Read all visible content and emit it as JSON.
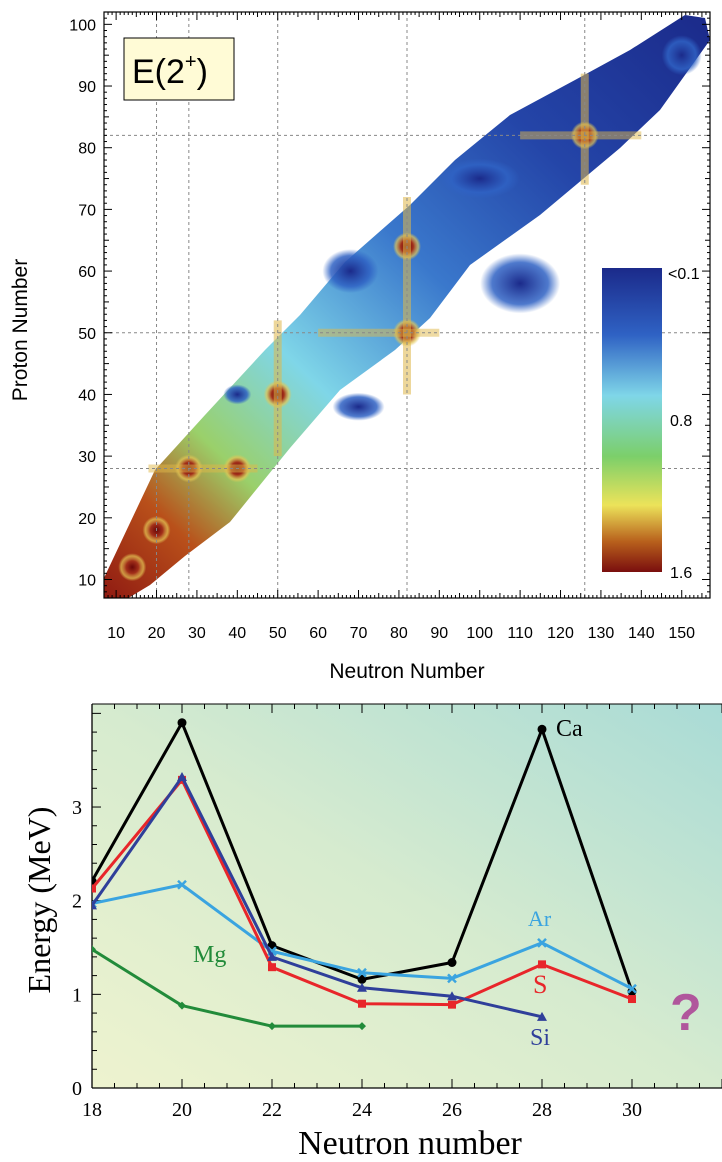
{
  "chart_data": [
    {
      "type": "heatmap",
      "title": "E(2⁺)",
      "title_base": "E(2",
      "title_sup": "+",
      "title_close": ")",
      "xlabel": "Neutron Number",
      "ylabel": "Proton Number",
      "xlim": [
        7,
        157
      ],
      "ylim": [
        7,
        102
      ],
      "x_ticks": [
        10,
        20,
        30,
        40,
        50,
        60,
        70,
        80,
        90,
        100,
        110,
        120,
        130,
        140,
        150
      ],
      "y_ticks": [
        10,
        20,
        30,
        40,
        50,
        60,
        70,
        80,
        90,
        100
      ],
      "magic_numbers_N": [
        20,
        28,
        50,
        82,
        126
      ],
      "magic_numbers_Z": [
        28,
        50,
        82
      ],
      "colorbar": {
        "labels": [
          "<0.1",
          "0.8",
          "1.6"
        ],
        "colors": [
          "#1b2a8a",
          "#2f62c4",
          "#7fd6e8",
          "#7ccf6a",
          "#ece35a",
          "#b8601c",
          "#7a0e0e"
        ]
      },
      "grid": true
    },
    {
      "type": "line",
      "xlabel": "Neutron number",
      "ylabel": "Energy (MeV)",
      "xlim": [
        18,
        32
      ],
      "ylim": [
        0,
        4.1
      ],
      "x_ticks": [
        18,
        20,
        22,
        24,
        26,
        28,
        30
      ],
      "y_ticks": [
        0,
        1,
        2,
        3
      ],
      "series": [
        {
          "name": "Ca",
          "color": "#000000",
          "marker": "circle",
          "x": [
            18,
            20,
            22,
            24,
            26,
            28,
            30
          ],
          "values": [
            2.21,
            3.9,
            1.52,
            1.16,
            1.34,
            3.83,
            1.03
          ]
        },
        {
          "name": "Ar",
          "color": "#3aa4e0",
          "marker": "x",
          "x": [
            18,
            20,
            22,
            24,
            26,
            28,
            30
          ],
          "values": [
            1.97,
            2.17,
            1.46,
            1.23,
            1.17,
            1.55,
            1.06
          ]
        },
        {
          "name": "S",
          "color": "#e8262a",
          "marker": "square",
          "x": [
            18,
            20,
            22,
            24,
            26,
            28,
            30
          ],
          "values": [
            2.13,
            3.29,
            1.29,
            0.9,
            0.89,
            1.32,
            0.95
          ]
        },
        {
          "name": "Si",
          "color": "#2f3f9a",
          "marker": "triangle",
          "x": [
            18,
            20,
            22,
            24,
            26,
            28
          ],
          "values": [
            1.95,
            3.32,
            1.4,
            1.07,
            0.98,
            0.76
          ]
        },
        {
          "name": "Mg",
          "color": "#228b3a",
          "marker": "diamond",
          "x": [
            18,
            20,
            22,
            24
          ],
          "values": [
            1.48,
            0.88,
            0.66,
            0.66
          ]
        }
      ],
      "annotation": "?"
    }
  ]
}
